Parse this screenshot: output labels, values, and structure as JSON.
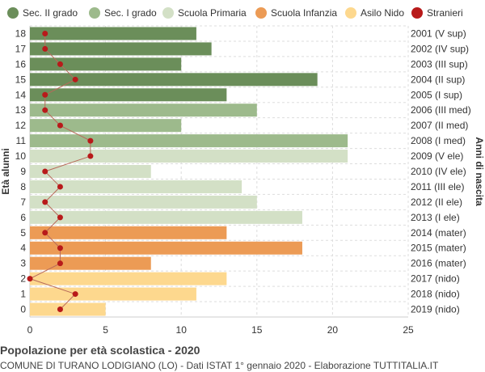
{
  "chart_data": {
    "type": "bar",
    "orientation": "horizontal",
    "title": "Popolazione per età scolastica - 2020",
    "subtitle": "COMUNE DI TURANO LODIGIANO (LO) - Dati ISTAT 1° gennaio 2020 - Elaborazione TUTTITALIA.IT",
    "ylabel": "Età alunni",
    "ylabel_right": "Anni di nascita",
    "xlim": [
      0,
      25
    ],
    "x_ticks": [
      0,
      5,
      10,
      15,
      20,
      25
    ],
    "grid": true,
    "legend_position": "top",
    "legend": [
      {
        "name": "Sec. II grado",
        "color": "#6b8e5a",
        "shape": "circle"
      },
      {
        "name": "Sec. I grado",
        "color": "#9dba8c",
        "shape": "circle"
      },
      {
        "name": "Scuola Primaria",
        "color": "#d3e0c6",
        "shape": "circle"
      },
      {
        "name": "Scuola Infanzia",
        "color": "#ec9b55",
        "shape": "circle"
      },
      {
        "name": "Asilo Nido",
        "color": "#fdd88e",
        "shape": "circle"
      },
      {
        "name": "Stranieri",
        "color": "#b81a1a",
        "shape": "circle"
      }
    ],
    "rows": [
      {
        "age": "18",
        "birth": "2001 (V sup)",
        "value": 11,
        "stranieri": 1,
        "group": 0
      },
      {
        "age": "17",
        "birth": "2002 (IV sup)",
        "value": 12,
        "stranieri": 1,
        "group": 0
      },
      {
        "age": "16",
        "birth": "2003 (III sup)",
        "value": 10,
        "stranieri": 2,
        "group": 0
      },
      {
        "age": "15",
        "birth": "2004 (II sup)",
        "value": 19,
        "stranieri": 3,
        "group": 0
      },
      {
        "age": "14",
        "birth": "2005 (I sup)",
        "value": 13,
        "stranieri": 1,
        "group": 0
      },
      {
        "age": "13",
        "birth": "2006 (III med)",
        "value": 15,
        "stranieri": 1,
        "group": 1
      },
      {
        "age": "12",
        "birth": "2007 (II med)",
        "value": 10,
        "stranieri": 2,
        "group": 1
      },
      {
        "age": "11",
        "birth": "2008 (I med)",
        "value": 21,
        "stranieri": 4,
        "group": 1
      },
      {
        "age": "10",
        "birth": "2009 (V ele)",
        "value": 21,
        "stranieri": 4,
        "group": 2
      },
      {
        "age": "9",
        "birth": "2010 (IV ele)",
        "value": 8,
        "stranieri": 1,
        "group": 2
      },
      {
        "age": "8",
        "birth": "2011 (III ele)",
        "value": 14,
        "stranieri": 2,
        "group": 2
      },
      {
        "age": "7",
        "birth": "2012 (II ele)",
        "value": 15,
        "stranieri": 1,
        "group": 2
      },
      {
        "age": "6",
        "birth": "2013 (I ele)",
        "value": 18,
        "stranieri": 2,
        "group": 2
      },
      {
        "age": "5",
        "birth": "2014 (mater)",
        "value": 13,
        "stranieri": 1,
        "group": 3
      },
      {
        "age": "4",
        "birth": "2015 (mater)",
        "value": 18,
        "stranieri": 2,
        "group": 3
      },
      {
        "age": "3",
        "birth": "2016 (mater)",
        "value": 8,
        "stranieri": 2,
        "group": 3
      },
      {
        "age": "2",
        "birth": "2017 (nido)",
        "value": 13,
        "stranieri": 0,
        "group": 4
      },
      {
        "age": "1",
        "birth": "2018 (nido)",
        "value": 11,
        "stranieri": 3,
        "group": 4
      },
      {
        "age": "0",
        "birth": "2019 (nido)",
        "value": 5,
        "stranieri": 2,
        "group": 4
      }
    ],
    "colors": {
      "grid": "#dddddd",
      "axis": "#cccccc",
      "stranieri_line": "#b86a5a"
    }
  }
}
